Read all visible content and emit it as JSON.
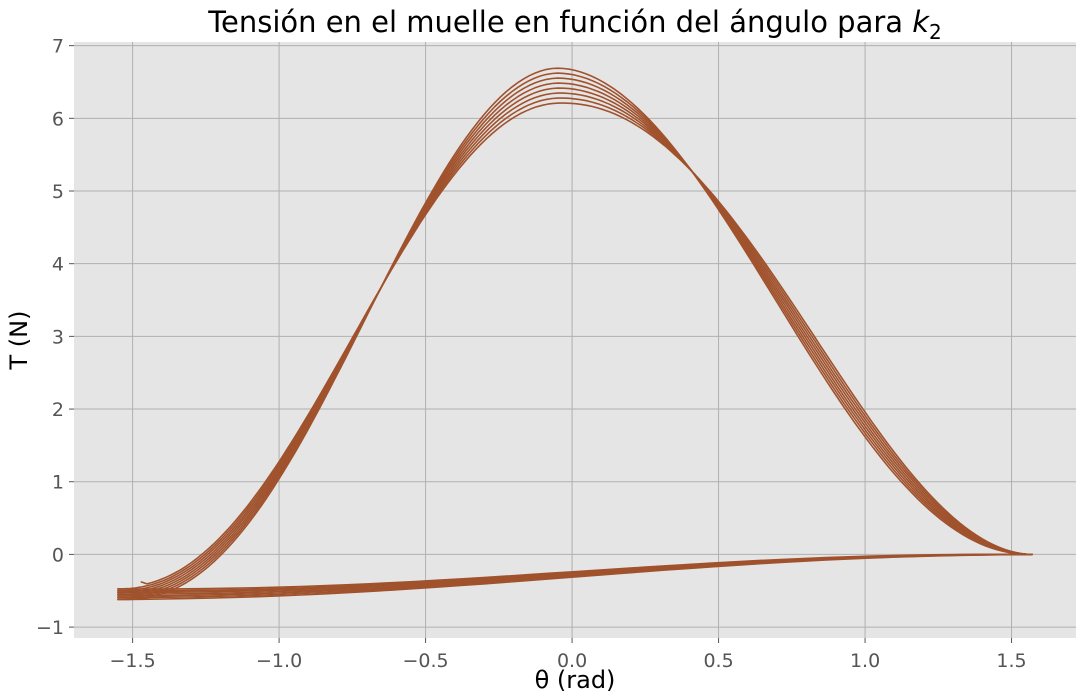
{
  "chart_data": {
    "type": "line",
    "title": "Tensión en el muelle en función del ángulo para ",
    "title_math": "k",
    "title_math_sub": "2",
    "xlabel": "θ (rad)",
    "ylabel": "T (N)",
    "xlim": [
      -1.7,
      1.72
    ],
    "ylim": [
      -1.15,
      7.05
    ],
    "xticks": [
      -1.5,
      -1.0,
      -0.5,
      0.0,
      0.5,
      1.0,
      1.5
    ],
    "xtick_labels": [
      "−1.5",
      "−1.0",
      "−0.5",
      "0.0",
      "0.5",
      "1.0",
      "1.5"
    ],
    "yticks": [
      -1,
      0,
      1,
      2,
      3,
      4,
      5,
      6,
      7
    ],
    "ytick_labels": [
      "−1",
      "0",
      "1",
      "2",
      "3",
      "4",
      "5",
      "6",
      "7"
    ],
    "grid": true,
    "colors": {
      "line": "#a0522d",
      "plot_background": "#e5e5e5",
      "grid": "#b0b0b0"
    },
    "curve_trace": {
      "theta_left": -1.55,
      "theta_right": 1.57,
      "cycles": 8,
      "start_theta": -1.47,
      "start_T": -0.38,
      "end_theta": -1.42,
      "end_T": -0.5,
      "peak_T_first": 6.21,
      "peak_T_last": 6.69,
      "peak_theta_first": -0.04,
      "peak_theta_last": -0.05,
      "left_turn_T_first": -0.45,
      "left_turn_T_last": -0.62,
      "right_bulge_first": 0.27,
      "right_bulge_last": -0.27,
      "left_bulge_first": 0.0,
      "left_bulge_last": -0.3
    }
  }
}
